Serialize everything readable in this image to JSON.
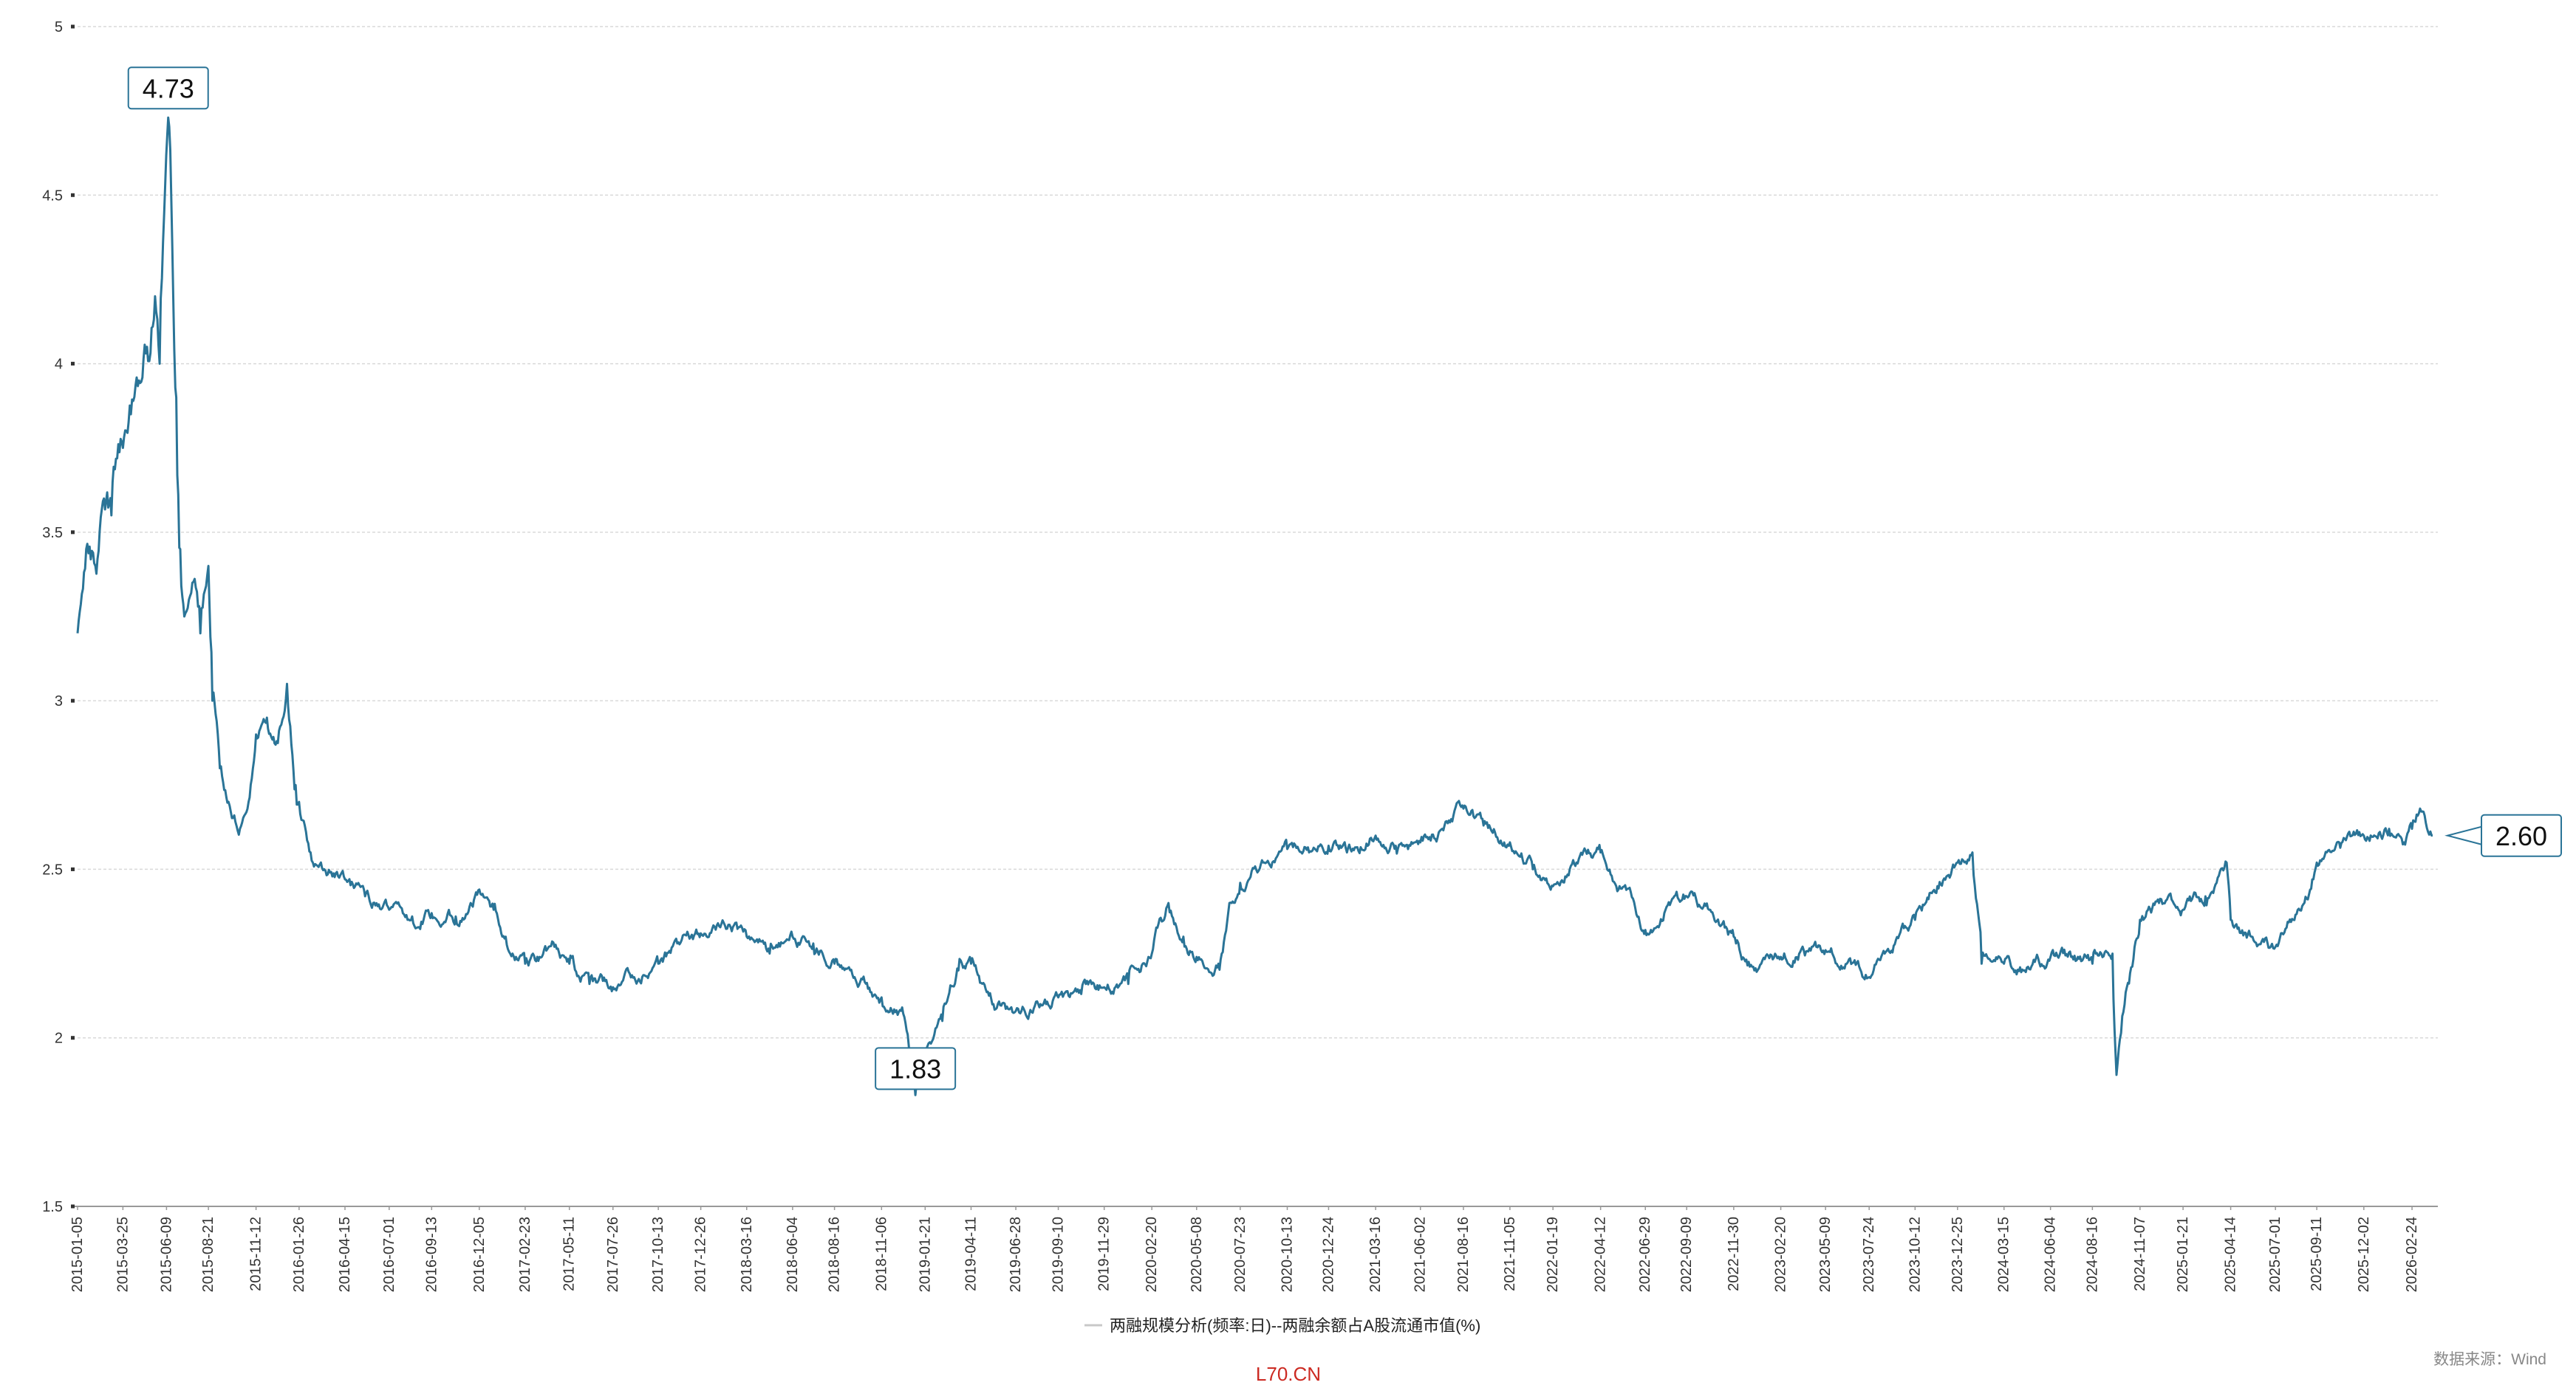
{
  "colors": {
    "series": "#2a7497",
    "grid": "#d9d9d9",
    "axis": "#999999",
    "watermark": "#cc2a22",
    "callout_border": "#2a7497"
  },
  "chart_data": {
    "type": "line",
    "title": "",
    "xlabel": "",
    "ylabel": "",
    "ylim": [
      1.5,
      5
    ],
    "yticks": [
      1.5,
      2,
      2.5,
      3,
      3.5,
      4,
      4.5,
      5
    ],
    "ytick_labels": [
      "1.5",
      "2",
      "2.5",
      "3",
      "3.5",
      "4",
      "4.5",
      "5"
    ],
    "grid": "horizontal-dashed",
    "legend_position": "bottom-center",
    "xtick_labels": [
      "2015-01-05",
      "2015-03-25",
      "2015-06-09",
      "2015-08-21",
      "2015-11-12",
      "2016-01-26",
      "2016-04-15",
      "2016-07-01",
      "2016-09-13",
      "2016-12-05",
      "2017-02-23",
      "2017-05-11",
      "2017-07-26",
      "2017-10-13",
      "2017-12-26",
      "2018-03-16",
      "2018-06-04",
      "2018-08-16",
      "2018-11-06",
      "2019-01-21",
      "2019-04-11",
      "2019-06-28",
      "2019-09-10",
      "2019-11-29",
      "2020-02-20",
      "2020-05-08",
      "2020-07-23",
      "2020-10-13",
      "2020-12-24",
      "2021-03-16",
      "2021-06-02",
      "2021-08-16",
      "2021-11-05",
      "2022-01-19",
      "2022-04-12",
      "2022-06-29",
      "2022-09-09",
      "2022-11-30",
      "2023-02-20",
      "2023-05-09",
      "2023-07-24",
      "2023-10-12",
      "2023-12-25",
      "2024-03-15",
      "2024-06-04",
      "2024-08-16",
      "2024-11-07",
      "2025-01-21",
      "2025-04-14",
      "2025-07-01",
      "2025-09-11",
      "2025-12-02",
      "2026-02-24"
    ],
    "series": [
      {
        "name": "两融规模分析(频率:日)--两融余额占A股流通市值(%)",
        "points": [
          [
            "2015-01-05",
            3.2
          ],
          [
            "2015-01-20",
            3.45
          ],
          [
            "2015-02-05",
            3.4
          ],
          [
            "2015-02-20",
            3.6
          ],
          [
            "2015-03-05",
            3.55
          ],
          [
            "2015-03-25",
            3.75
          ],
          [
            "2015-04-08",
            3.85
          ],
          [
            "2015-04-22",
            3.95
          ],
          [
            "2015-05-06",
            4.05
          ],
          [
            "2015-05-20",
            4.2
          ],
          [
            "2015-05-28",
            4.0
          ],
          [
            "2015-06-05",
            4.45
          ],
          [
            "2015-06-12",
            4.73
          ],
          [
            "2015-06-19",
            4.35
          ],
          [
            "2015-06-26",
            3.9
          ],
          [
            "2015-07-03",
            3.45
          ],
          [
            "2015-07-10",
            3.25
          ],
          [
            "2015-07-24",
            3.35
          ],
          [
            "2015-08-07",
            3.2
          ],
          [
            "2015-08-21",
            3.4
          ],
          [
            "2015-08-28",
            3.0
          ],
          [
            "2015-09-10",
            2.8
          ],
          [
            "2015-09-25",
            2.7
          ],
          [
            "2015-10-15",
            2.62
          ],
          [
            "2015-10-30",
            2.7
          ],
          [
            "2015-11-12",
            2.9
          ],
          [
            "2015-12-01",
            2.95
          ],
          [
            "2015-12-18",
            2.88
          ],
          [
            "2016-01-05",
            3.05
          ],
          [
            "2016-01-20",
            2.75
          ],
          [
            "2016-01-26",
            2.7
          ],
          [
            "2016-02-15",
            2.55
          ],
          [
            "2016-03-10",
            2.5
          ],
          [
            "2016-04-15",
            2.47
          ],
          [
            "2016-05-20",
            2.42
          ],
          [
            "2016-07-01",
            2.38
          ],
          [
            "2016-08-10",
            2.36
          ],
          [
            "2016-09-13",
            2.37
          ],
          [
            "2016-10-25",
            2.36
          ],
          [
            "2016-11-20",
            2.4
          ],
          [
            "2016-12-05",
            2.44
          ],
          [
            "2016-12-30",
            2.38
          ],
          [
            "2017-01-20",
            2.3
          ],
          [
            "2017-02-23",
            2.22
          ],
          [
            "2017-03-20",
            2.24
          ],
          [
            "2017-04-15",
            2.27
          ],
          [
            "2017-05-11",
            2.22
          ],
          [
            "2017-06-15",
            2.16
          ],
          [
            "2017-07-26",
            2.15
          ],
          [
            "2017-09-01",
            2.18
          ],
          [
            "2017-10-13",
            2.22
          ],
          [
            "2017-11-15",
            2.28
          ],
          [
            "2017-12-26",
            2.31
          ],
          [
            "2018-01-25",
            2.34
          ],
          [
            "2018-03-16",
            2.3
          ],
          [
            "2018-04-25",
            2.25
          ],
          [
            "2018-06-04",
            2.3
          ],
          [
            "2018-07-10",
            2.28
          ],
          [
            "2018-08-16",
            2.22
          ],
          [
            "2018-09-20",
            2.18
          ],
          [
            "2018-11-06",
            2.12
          ],
          [
            "2018-12-10",
            2.08
          ],
          [
            "2019-01-04",
            1.83
          ],
          [
            "2019-01-21",
            1.95
          ],
          [
            "2019-02-20",
            2.05
          ],
          [
            "2019-03-20",
            2.2
          ],
          [
            "2019-04-11",
            2.22
          ],
          [
            "2019-05-20",
            2.1
          ],
          [
            "2019-06-28",
            2.08
          ],
          [
            "2019-08-10",
            2.1
          ],
          [
            "2019-09-10",
            2.12
          ],
          [
            "2019-10-20",
            2.13
          ],
          [
            "2019-11-29",
            2.15
          ],
          [
            "2020-01-10",
            2.16
          ],
          [
            "2020-02-20",
            2.25
          ],
          [
            "2020-03-20",
            2.4
          ],
          [
            "2020-04-15",
            2.3
          ],
          [
            "2020-05-08",
            2.24
          ],
          [
            "2020-06-15",
            2.22
          ],
          [
            "2020-07-08",
            2.4
          ],
          [
            "2020-07-23",
            2.46
          ],
          [
            "2020-09-01",
            2.52
          ],
          [
            "2020-10-13",
            2.56
          ],
          [
            "2020-11-20",
            2.55
          ],
          [
            "2020-12-24",
            2.57
          ],
          [
            "2021-01-25",
            2.55
          ],
          [
            "2021-03-16",
            2.6
          ],
          [
            "2021-04-20",
            2.57
          ],
          [
            "2021-06-02",
            2.58
          ],
          [
            "2021-07-10",
            2.62
          ],
          [
            "2021-08-16",
            2.68
          ],
          [
            "2021-09-20",
            2.63
          ],
          [
            "2021-11-05",
            2.58
          ],
          [
            "2021-12-15",
            2.5
          ],
          [
            "2022-01-19",
            2.45
          ],
          [
            "2022-03-01",
            2.52
          ],
          [
            "2022-04-12",
            2.55
          ],
          [
            "2022-05-15",
            2.45
          ],
          [
            "2022-06-29",
            2.32
          ],
          [
            "2022-08-01",
            2.37
          ],
          [
            "2022-09-09",
            2.42
          ],
          [
            "2022-10-20",
            2.38
          ],
          [
            "2022-11-30",
            2.3
          ],
          [
            "2023-01-05",
            2.2
          ],
          [
            "2023-02-20",
            2.24
          ],
          [
            "2023-04-01",
            2.26
          ],
          [
            "2023-05-09",
            2.26
          ],
          [
            "2023-06-15",
            2.22
          ],
          [
            "2023-07-24",
            2.18
          ],
          [
            "2023-08-20",
            2.25
          ],
          [
            "2023-10-12",
            2.35
          ],
          [
            "2023-11-20",
            2.45
          ],
          [
            "2023-12-25",
            2.52
          ],
          [
            "2024-01-20",
            2.55
          ],
          [
            "2024-02-05",
            2.22
          ],
          [
            "2024-03-15",
            2.22
          ],
          [
            "2024-04-20",
            2.2
          ],
          [
            "2024-06-04",
            2.24
          ],
          [
            "2024-07-10",
            2.24
          ],
          [
            "2024-08-16",
            2.22
          ],
          [
            "2024-09-20",
            2.25
          ],
          [
            "2024-09-27",
            1.89
          ],
          [
            "2024-10-15",
            2.15
          ],
          [
            "2024-11-07",
            2.35
          ],
          [
            "2024-12-10",
            2.4
          ],
          [
            "2025-01-21",
            2.38
          ],
          [
            "2025-03-01",
            2.42
          ],
          [
            "2025-04-07",
            2.52
          ],
          [
            "2025-04-14",
            2.35
          ],
          [
            "2025-05-20",
            2.3
          ],
          [
            "2025-07-01",
            2.27
          ],
          [
            "2025-08-01",
            2.35
          ],
          [
            "2025-09-11",
            2.52
          ],
          [
            "2025-10-20",
            2.58
          ],
          [
            "2025-12-02",
            2.6
          ],
          [
            "2026-01-15",
            2.62
          ],
          [
            "2026-02-10",
            2.58
          ],
          [
            "2026-02-24",
            2.62
          ],
          [
            "2026-03-10",
            2.68
          ],
          [
            "2026-04-01",
            2.6
          ]
        ]
      }
    ],
    "callouts": [
      {
        "label": "4.73",
        "date": "2015-06-12",
        "value": 4.73
      },
      {
        "label": "1.83",
        "date": "2019-01-04",
        "value": 1.83
      },
      {
        "label": "2.60",
        "date": "2026-04-01",
        "value": 2.6
      }
    ]
  },
  "legend": {
    "label": "两融规模分析(频率:日)--两融余额占A股流通市值(%)"
  },
  "watermark": "L70.CN",
  "source": "数据来源：Wind"
}
